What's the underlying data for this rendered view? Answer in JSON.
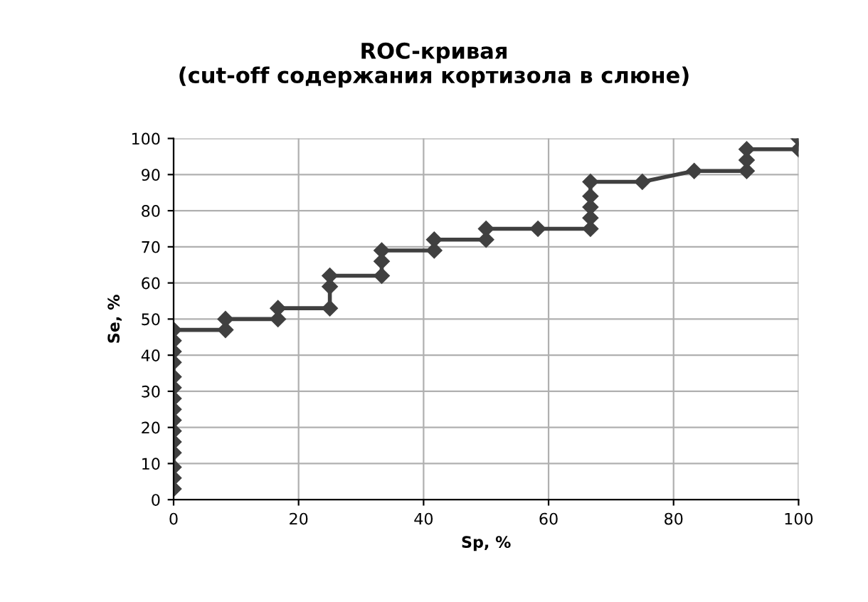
{
  "chart_data": {
    "type": "line",
    "title": "ROC-кривая\n(cut-off содержания кортизола в слюне)",
    "xlabel": "Sp, %",
    "ylabel": "Se, %",
    "x": [
      0,
      0,
      0,
      0,
      0,
      0,
      0,
      0,
      0,
      0,
      0,
      0,
      0,
      0,
      0,
      8.3,
      8.3,
      16.7,
      16.7,
      25,
      25,
      25,
      33.3,
      33.3,
      33.3,
      41.7,
      41.7,
      50,
      50,
      58.3,
      66.7,
      66.7,
      66.7,
      66.7,
      66.7,
      75,
      83.3,
      91.7,
      91.7,
      91.7,
      100,
      100
    ],
    "series": [
      {
        "color": "#404040",
        "values": [
          3,
          6,
          9,
          13,
          16,
          19,
          22,
          25,
          28,
          31,
          34,
          38,
          41,
          44,
          47,
          47,
          50,
          50,
          53,
          53,
          59,
          62,
          62,
          66,
          69,
          69,
          72,
          72,
          75,
          75,
          75,
          78,
          81,
          84,
          88,
          88,
          91,
          91,
          94,
          97,
          97,
          100
        ]
      }
    ],
    "xlim": [
      0,
      100
    ],
    "ylim": [
      0,
      100
    ],
    "xticks": [
      0,
      20,
      40,
      60,
      80,
      100
    ],
    "yticks": [
      0,
      10,
      20,
      30,
      40,
      50,
      60,
      70,
      80,
      90,
      100
    ],
    "grid": true,
    "marker": "diamond",
    "line_style": "solid",
    "legend": false
  }
}
